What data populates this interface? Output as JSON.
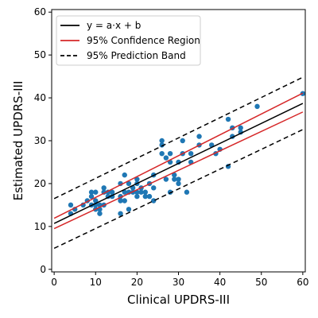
{
  "chart_data": {
    "type": "scatter",
    "xlabel": "Clinical UPDRS-III",
    "ylabel": "Estimated UPDRS-III",
    "xlim": [
      -0.6,
      60.6
    ],
    "ylim": [
      -0.6,
      60.6
    ],
    "xticks": [
      0,
      10,
      20,
      30,
      40,
      50,
      60
    ],
    "yticks": [
      0,
      10,
      20,
      30,
      40,
      50,
      60
    ],
    "grid": false,
    "legend_position": "top-left",
    "colors": {
      "points": "#1f77b4",
      "fit": "#000000",
      "confidence": "#d62728",
      "prediction": "#000000"
    },
    "legend": [
      {
        "label": "y = a·x + b",
        "style": "solid",
        "color": "#000000"
      },
      {
        "label": "95% Confidence Region",
        "style": "solid",
        "color": "#d62728"
      },
      {
        "label": "95% Prediction Band",
        "style": "dashed",
        "color": "#000000"
      }
    ],
    "fit_line": {
      "x": [
        0,
        60
      ],
      "y": [
        10.7,
        38.7
      ]
    },
    "confidence_upper": {
      "x": [
        0,
        60
      ],
      "y": [
        11.9,
        41.1
      ]
    },
    "confidence_lower": {
      "x": [
        0,
        60
      ],
      "y": [
        9.5,
        36.7
      ]
    },
    "prediction_upper": {
      "x": [
        0,
        60
      ],
      "y": [
        16.5,
        44.8
      ]
    },
    "prediction_lower": {
      "x": [
        0,
        60
      ],
      "y": [
        4.9,
        32.6
      ]
    },
    "points": [
      {
        "x": 4,
        "y": 15
      },
      {
        "x": 4,
        "y": 13
      },
      {
        "x": 5,
        "y": 14
      },
      {
        "x": 7,
        "y": 15
      },
      {
        "x": 8,
        "y": 16
      },
      {
        "x": 9,
        "y": 18
      },
      {
        "x": 9,
        "y": 15
      },
      {
        "x": 9,
        "y": 17
      },
      {
        "x": 10,
        "y": 18
      },
      {
        "x": 10,
        "y": 16
      },
      {
        "x": 10,
        "y": 14
      },
      {
        "x": 10,
        "y": 15
      },
      {
        "x": 11,
        "y": 14
      },
      {
        "x": 11,
        "y": 13
      },
      {
        "x": 11,
        "y": 15
      },
      {
        "x": 12,
        "y": 19
      },
      {
        "x": 12,
        "y": 18
      },
      {
        "x": 12,
        "y": 15
      },
      {
        "x": 13,
        "y": 17
      },
      {
        "x": 13,
        "y": 18
      },
      {
        "x": 14,
        "y": 17
      },
      {
        "x": 14,
        "y": 18
      },
      {
        "x": 16,
        "y": 20
      },
      {
        "x": 16,
        "y": 17
      },
      {
        "x": 16,
        "y": 16
      },
      {
        "x": 16,
        "y": 13
      },
      {
        "x": 17,
        "y": 22
      },
      {
        "x": 17,
        "y": 18
      },
      {
        "x": 17,
        "y": 16
      },
      {
        "x": 18,
        "y": 20
      },
      {
        "x": 18,
        "y": 18
      },
      {
        "x": 18,
        "y": 14
      },
      {
        "x": 19,
        "y": 19
      },
      {
        "x": 19,
        "y": 18
      },
      {
        "x": 20,
        "y": 21
      },
      {
        "x": 20,
        "y": 20
      },
      {
        "x": 20,
        "y": 18
      },
      {
        "x": 20,
        "y": 17
      },
      {
        "x": 21,
        "y": 19
      },
      {
        "x": 21,
        "y": 18
      },
      {
        "x": 22,
        "y": 17
      },
      {
        "x": 22,
        "y": 18
      },
      {
        "x": 23,
        "y": 20
      },
      {
        "x": 23,
        "y": 17
      },
      {
        "x": 24,
        "y": 22
      },
      {
        "x": 24,
        "y": 19
      },
      {
        "x": 24,
        "y": 16
      },
      {
        "x": 26,
        "y": 30
      },
      {
        "x": 26,
        "y": 29
      },
      {
        "x": 26,
        "y": 27
      },
      {
        "x": 27,
        "y": 26
      },
      {
        "x": 27,
        "y": 21
      },
      {
        "x": 28,
        "y": 27
      },
      {
        "x": 28,
        "y": 25
      },
      {
        "x": 28,
        "y": 18
      },
      {
        "x": 29,
        "y": 22
      },
      {
        "x": 29,
        "y": 21
      },
      {
        "x": 30,
        "y": 25
      },
      {
        "x": 30,
        "y": 21
      },
      {
        "x": 30,
        "y": 20
      },
      {
        "x": 31,
        "y": 30
      },
      {
        "x": 31,
        "y": 27
      },
      {
        "x": 32,
        "y": 18
      },
      {
        "x": 33,
        "y": 27
      },
      {
        "x": 33,
        "y": 25
      },
      {
        "x": 35,
        "y": 31
      },
      {
        "x": 35,
        "y": 29
      },
      {
        "x": 38,
        "y": 29
      },
      {
        "x": 39,
        "y": 27
      },
      {
        "x": 40,
        "y": 28
      },
      {
        "x": 42,
        "y": 35
      },
      {
        "x": 42,
        "y": 24
      },
      {
        "x": 43,
        "y": 33
      },
      {
        "x": 43,
        "y": 31
      },
      {
        "x": 45,
        "y": 33
      },
      {
        "x": 45,
        "y": 32
      },
      {
        "x": 49,
        "y": 38
      },
      {
        "x": 60,
        "y": 41
      }
    ]
  }
}
